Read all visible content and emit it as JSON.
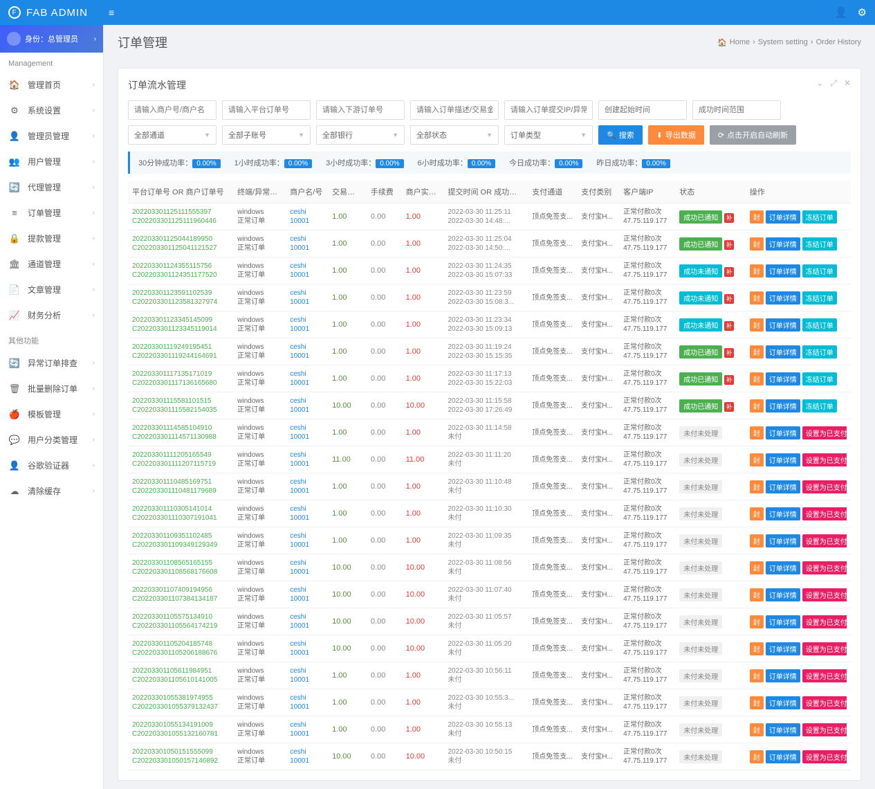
{
  "brand": "FAB ADMIN",
  "role": {
    "label": "身份：总管理员"
  },
  "sidebar": {
    "section1": "Management",
    "section2": "其他功能",
    "items": [
      {
        "icon": "🏠",
        "label": "管理首页"
      },
      {
        "icon": "⚙",
        "label": "系统设置"
      },
      {
        "icon": "👤",
        "label": "管理员管理"
      },
      {
        "icon": "👥",
        "label": "用户管理"
      },
      {
        "icon": "🔄",
        "label": "代理管理"
      },
      {
        "icon": "≡",
        "label": "订单管理"
      },
      {
        "icon": "🔒",
        "label": "提款管理"
      },
      {
        "icon": "🏛",
        "label": "通道管理"
      },
      {
        "icon": "📄",
        "label": "文章管理"
      },
      {
        "icon": "📈",
        "label": "财务分析"
      }
    ],
    "items2": [
      {
        "icon": "🔄",
        "label": "异常订单排查"
      },
      {
        "icon": "🗑",
        "label": "批量删除订单"
      },
      {
        "icon": "🍎",
        "label": "模板管理"
      },
      {
        "icon": "💬",
        "label": "用户分类管理"
      },
      {
        "icon": "👤",
        "label": "谷歌验证器"
      },
      {
        "icon": "☁",
        "label": "清除缓存"
      }
    ]
  },
  "page": {
    "title": "订单管理",
    "crumbs": [
      "Home",
      "System setting",
      "Order History"
    ]
  },
  "card": {
    "title": "订单流水管理",
    "filters": {
      "placeholders": [
        "请输入商户号/商户名",
        "请输入平台订单号",
        "请输入下游订单号",
        "请输入订单描述/交易金额",
        "请输入订单提交IP/异常回调IP",
        "创建起始时间",
        "成功时间范围"
      ],
      "selects": [
        "全部通道",
        "全部子账号",
        "全部银行",
        "全部状态",
        "订单类型"
      ],
      "btn_search": "搜索",
      "btn_export": "导出数据",
      "btn_auto": "点击开启自动刷新"
    },
    "stats": [
      {
        "label": "30分钟成功率：",
        "val": "0.00%"
      },
      {
        "label": "1小时成功率：",
        "val": "0.00%"
      },
      {
        "label": "3小时成功率：",
        "val": "0.00%"
      },
      {
        "label": "6小时成功率：",
        "val": "0.00%"
      },
      {
        "label": "今日成功率：",
        "val": "0.00%"
      },
      {
        "label": "昨日成功率：",
        "val": "0.00%"
      }
    ],
    "columns": [
      "平台订单号 OR 商户订单号",
      "终端/异常信...",
      "商户名/号",
      "交易金额",
      "手续费",
      "商户实收...",
      "提交时间 OR 成功时间",
      "支付通道",
      "支付类别",
      "客户端IP",
      "状态",
      "操作"
    ],
    "merchant": {
      "name": "ceshi",
      "id": "10001"
    },
    "terminal": {
      "os": "windows",
      "type": "正常订单"
    },
    "channel": "顶点免签支...",
    "paytype": "支付宝H...",
    "client": {
      "line1": "正常付款0次",
      "ip": "47.75.119.177"
    },
    "status_labels": {
      "success_notified": "成功已通知",
      "success_unnotified": "成功未通知",
      "unpaid": "未付未处理"
    },
    "action_labels": {
      "seal": "封",
      "detail": "订单详情",
      "freeze": "冻结订单",
      "setpaid": "设置为已支付"
    },
    "rows": [
      {
        "o1": "202203301125111555397",
        "o2": "C202203301125111960446",
        "a": "1.00",
        "f": "0.00",
        "r": "1.00",
        "t1": "2022-03-30 11:25:11",
        "t2": "2022-03-30 14:48:...",
        "st": "success_notified",
        "act": "freeze"
      },
      {
        "o1": "202203301125044189950",
        "o2": "C202203301125041121527",
        "a": "1.00",
        "f": "0.00",
        "r": "1.00",
        "t1": "2022-03-30 11:25:04",
        "t2": "2022-03-30 14:50:...",
        "st": "success_notified",
        "act": "freeze"
      },
      {
        "o1": "202203301124355115756",
        "o2": "C202203301124351177520",
        "a": "1.00",
        "f": "0.00",
        "r": "1.00",
        "t1": "2022-03-30 11:24:35",
        "t2": "2022-03-30 15:07:33",
        "st": "success_unnotified",
        "act": "freeze"
      },
      {
        "o1": "202203301123591102539",
        "o2": "C202203301123581327974",
        "a": "1.00",
        "f": "0.00",
        "r": "1.00",
        "t1": "2022-03-30 11:23:59",
        "t2": "2022-03-30 15:08:3...",
        "st": "success_unnotified",
        "act": "freeze"
      },
      {
        "o1": "202203301123345145099",
        "o2": "C202203301123345119014",
        "a": "1.00",
        "f": "0.00",
        "r": "1.00",
        "t1": "2022-03-30 11:23:34",
        "t2": "2022-03-30 15:09:13",
        "st": "success_unnotified",
        "act": "freeze"
      },
      {
        "o1": "202203301119249195451",
        "o2": "C202203301119244164691",
        "a": "1.00",
        "f": "0.00",
        "r": "1.00",
        "t1": "2022-03-30 11:19:24",
        "t2": "2022-03-30 15:15:35",
        "st": "success_notified",
        "act": "freeze"
      },
      {
        "o1": "202203301117135171019",
        "o2": "C202203301117136165680",
        "a": "1.00",
        "f": "0.00",
        "r": "1.00",
        "t1": "2022-03-30 11:17:13",
        "t2": "2022-03-30 15:22:03",
        "st": "success_notified",
        "act": "freeze"
      },
      {
        "o1": "202203301115581101515",
        "o2": "C202203301115582154035",
        "a": "10.00",
        "f": "0.00",
        "r": "10.00",
        "t1": "2022-03-30 11:15:58",
        "t2": "2022-03-30 17:26:49",
        "st": "success_notified",
        "act": "freeze"
      },
      {
        "o1": "202203301114585104910",
        "o2": "C202203301114571130988",
        "a": "1.00",
        "f": "0.00",
        "r": "1.00",
        "t1": "2022-03-30 11:14:58",
        "t2": "未付",
        "st": "unpaid",
        "act": "setpaid"
      },
      {
        "o1": "202203301111205165549",
        "o2": "C202203301111207115719",
        "a": "11.00",
        "f": "0.00",
        "r": "11.00",
        "t1": "2022-03-30 11:11:20",
        "t2": "未付",
        "st": "unpaid",
        "act": "setpaid"
      },
      {
        "o1": "202203301110485169751",
        "o2": "C202203301110481179689",
        "a": "1.00",
        "f": "0.00",
        "r": "1.00",
        "t1": "2022-03-30 11:10:48",
        "t2": "未付",
        "st": "unpaid",
        "act": "setpaid"
      },
      {
        "o1": "202203301110305141014",
        "o2": "C202203301110307191041",
        "a": "1.00",
        "f": "0.00",
        "r": "1.00",
        "t1": "2022-03-30 11:10:30",
        "t2": "未付",
        "st": "unpaid",
        "act": "setpaid"
      },
      {
        "o1": "202203301109351102485",
        "o2": "C202203301109349129349",
        "a": "1.00",
        "f": "0.00",
        "r": "1.00",
        "t1": "2022-03-30 11:09:35",
        "t2": "未付",
        "st": "unpaid",
        "act": "setpaid"
      },
      {
        "o1": "202203301108565165155",
        "o2": "C202203301108568176608",
        "a": "10.00",
        "f": "0.00",
        "r": "10.00",
        "t1": "2022-03-30 11:08:56",
        "t2": "未付",
        "st": "unpaid",
        "act": "setpaid"
      },
      {
        "o1": "202203301107409194956",
        "o2": "C202203301107384134187",
        "a": "10.00",
        "f": "0.00",
        "r": "10.00",
        "t1": "2022-03-30 11:07:40",
        "t2": "未付",
        "st": "unpaid",
        "act": "setpaid"
      },
      {
        "o1": "202203301105575134910",
        "o2": "C202203301105564174219",
        "a": "10.00",
        "f": "0.00",
        "r": "10.00",
        "t1": "2022-03-30 11:05:57",
        "t2": "未付",
        "st": "unpaid",
        "act": "setpaid"
      },
      {
        "o1": "202203301105204185748",
        "o2": "C202203301105206188676",
        "a": "10.00",
        "f": "0.00",
        "r": "10.00",
        "t1": "2022-03-30 11:05:20",
        "t2": "未付",
        "st": "unpaid",
        "act": "setpaid"
      },
      {
        "o1": "202203301105611984951",
        "o2": "C202203301105610141005",
        "a": "1.00",
        "f": "0.00",
        "r": "1.00",
        "t1": "2022-03-30 10:56:11",
        "t2": "未付",
        "st": "unpaid",
        "act": "setpaid"
      },
      {
        "o1": "202203301055381974955",
        "o2": "C202203301055379132437",
        "a": "1.00",
        "f": "0.00",
        "r": "1.00",
        "t1": "2022-03-30 10:55:3...",
        "t2": "未付",
        "st": "unpaid",
        "act": "setpaid"
      },
      {
        "o1": "202203301055134191009",
        "o2": "C202203301055132160781",
        "a": "1.00",
        "f": "0.00",
        "r": "1.00",
        "t1": "2022-03-30 10:55:13",
        "t2": "未付",
        "st": "unpaid",
        "act": "setpaid"
      },
      {
        "o1": "202203301050151555099",
        "o2": "C202203301050157146892",
        "a": "10.00",
        "f": "0.00",
        "r": "10.00",
        "t1": "2022-03-30 10:50:15",
        "t2": "未付",
        "st": "unpaid",
        "act": "setpaid"
      }
    ]
  }
}
